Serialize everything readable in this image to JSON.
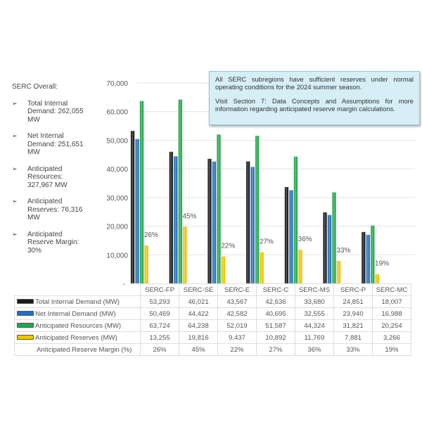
{
  "summary": {
    "title": "SERC Overall:",
    "items": [
      "Total Internal Demand: 262,055 MW",
      "Net Internal Demand: 251,651 MW",
      "Anticipated Resources: 327,967 MW",
      "Anticipated Reserves: 76,316 MW",
      "Anticipated Reserve Margin: 30%"
    ]
  },
  "callout": {
    "p1": "All SERC subregions have sufficient reserves under normal operating conditions for the 2024 summer season.",
    "p2": "Visit Section 7: Data Concepts and Assumptions for more information regarding anticipated reserve margin calculations."
  },
  "chart_data": {
    "type": "bar",
    "categories": [
      "SERC-FP",
      "SERC-SE",
      "SERC-E",
      "SERC-C",
      "SERC-MS",
      "SERC-P",
      "SERC-MC"
    ],
    "series": [
      {
        "name": "Total Internal Demand (MW)",
        "color": "#1a1a1a",
        "values": [
          53293,
          46021,
          43567,
          42636,
          33680,
          24851,
          18007
        ]
      },
      {
        "name": "Net Internal Demand (MW)",
        "color": "#1f6fbf",
        "values": [
          50469,
          44422,
          42582,
          40695,
          32555,
          23940,
          16988
        ]
      },
      {
        "name": "Anticipated Resources (MW)",
        "color": "#22a84a",
        "values": [
          63724,
          64238,
          52019,
          51587,
          44324,
          31821,
          20254
        ]
      },
      {
        "name": "Anticipated Reserves (MW)",
        "color": "#f5c200",
        "values": [
          13255,
          19816,
          9437,
          10892,
          11769,
          7881,
          3266
        ]
      }
    ],
    "margin": {
      "name": "Anticipated Reserve Margin (%)",
      "values": [
        "26%",
        "45%",
        "22%",
        "27%",
        "36%",
        "33%",
        "19%"
      ]
    },
    "yticks": [
      "-",
      "10,000",
      "20,000",
      "30,000",
      "40,000",
      "50,000",
      "60,000",
      "70,000"
    ],
    "ylim": [
      0,
      70000
    ],
    "grid": true,
    "legend": "table-below"
  }
}
